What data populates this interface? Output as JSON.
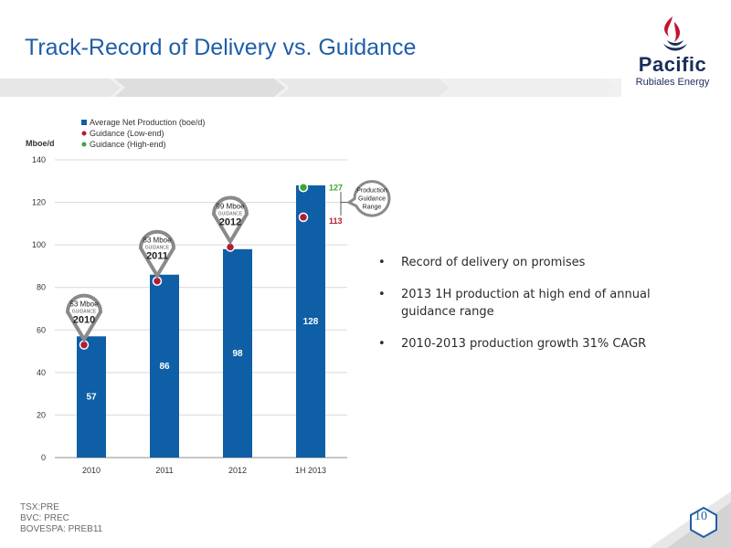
{
  "slide": {
    "title": "Track-Record of Delivery vs. Guidance",
    "page_number": "10"
  },
  "logo": {
    "name": "Pacific",
    "subtitle": "Rubiales Energy"
  },
  "bullets": [
    "Record of delivery on promises",
    "2013 1H production at high end of annual guidance range",
    "2010-2013 production growth 31% CAGR"
  ],
  "footer": {
    "lines": [
      "TSX:PRE",
      "BVC: PREC",
      "BOVESPA: PREB11"
    ]
  },
  "chart_data": {
    "type": "bar",
    "ylabel": "Mboe/d",
    "ylim": [
      0,
      140
    ],
    "yticks": [
      0,
      20,
      40,
      60,
      80,
      100,
      120,
      140
    ],
    "categories": [
      "2010",
      "2011",
      "2012",
      "1H 2013"
    ],
    "grid": true,
    "legend_position": "top-left",
    "series": [
      {
        "name": "Average Net Production (boe/d)",
        "type": "bar",
        "color": "#0e5fa6",
        "values": [
          57,
          86,
          98,
          128
        ]
      },
      {
        "name": "Guidance (Low-end)",
        "type": "marker",
        "color": "#b31b34",
        "values": [
          53,
          83,
          99,
          113
        ]
      },
      {
        "name": "Guidance (High-end)",
        "type": "marker",
        "color": "#3aa635",
        "values": [
          null,
          null,
          null,
          127
        ]
      }
    ],
    "bar_labels": [
      "57",
      "86",
      "98",
      "128"
    ],
    "callouts": [
      {
        "value": "53",
        "unit": "Mboe",
        "label": "GUIDANCE",
        "year": "2010"
      },
      {
        "value": "83",
        "unit": "Mboe",
        "label": "GUIDANCE",
        "year": "2011"
      },
      {
        "value": "99",
        "unit": "Mboe",
        "label": "GUIDANCE",
        "year": "2012"
      }
    ],
    "range_labels": {
      "high": "127",
      "low": "113"
    },
    "range_callout": [
      "Production",
      "Guidance",
      "Range"
    ]
  }
}
